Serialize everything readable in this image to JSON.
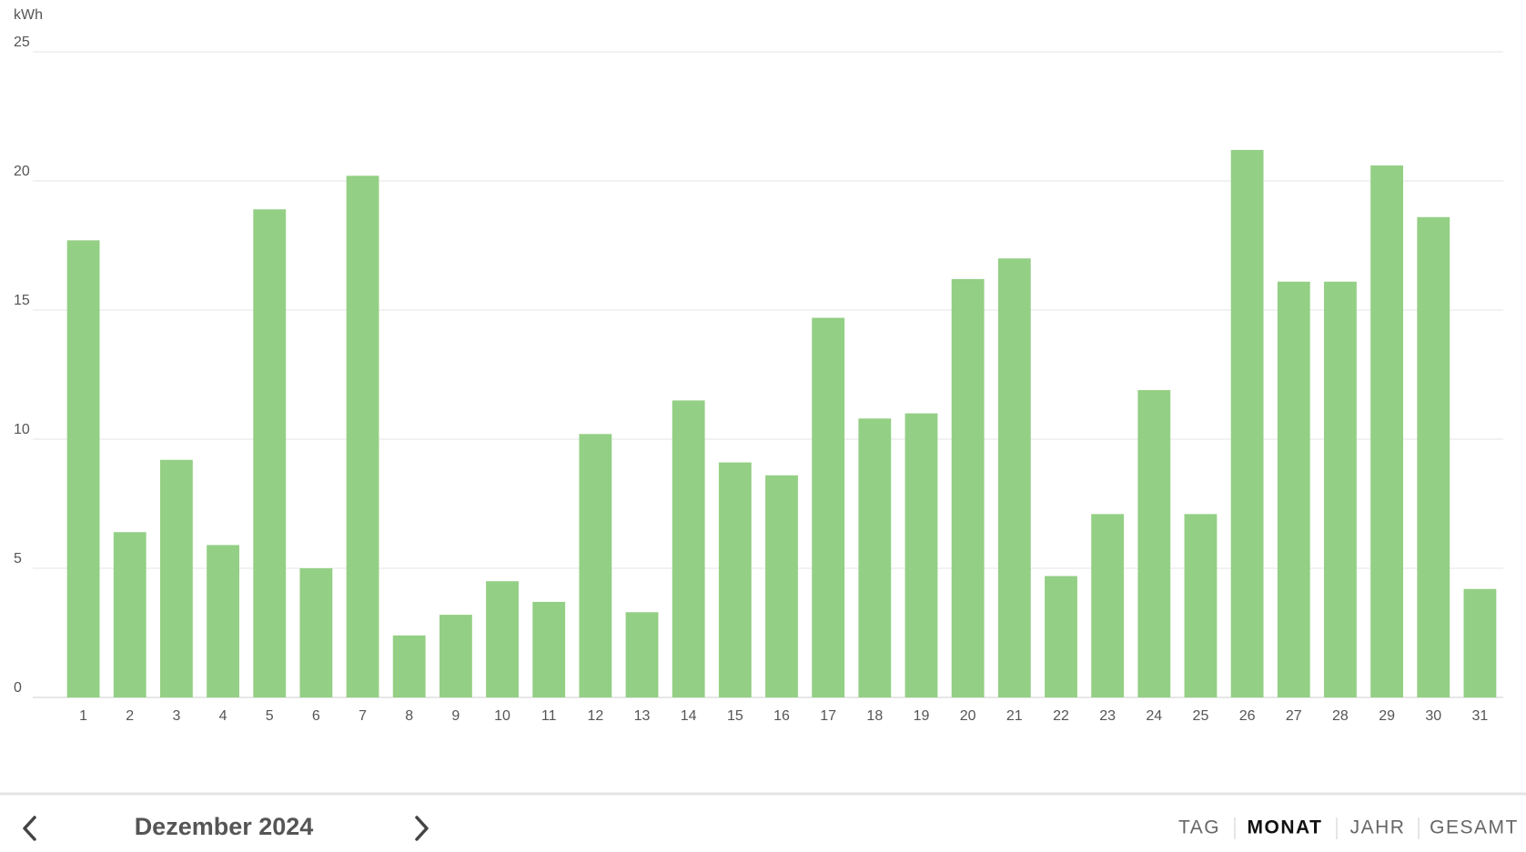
{
  "chart_data": {
    "type": "bar",
    "y_label": "kWh",
    "categories": [
      "1",
      "2",
      "3",
      "4",
      "5",
      "6",
      "7",
      "8",
      "9",
      "10",
      "11",
      "12",
      "13",
      "14",
      "15",
      "16",
      "17",
      "18",
      "19",
      "20",
      "21",
      "22",
      "23",
      "24",
      "25",
      "26",
      "27",
      "28",
      "29",
      "30",
      "31"
    ],
    "values": [
      17.7,
      6.4,
      9.2,
      5.9,
      18.9,
      5.0,
      20.2,
      2.4,
      3.2,
      4.5,
      3.7,
      10.2,
      3.3,
      11.5,
      9.1,
      8.6,
      14.7,
      10.8,
      11.0,
      16.2,
      17.0,
      4.7,
      7.1,
      11.9,
      7.1,
      21.2,
      16.1,
      16.1,
      20.6,
      18.6,
      4.2
    ],
    "color": "#93cf84",
    "ylim": [
      0,
      25
    ],
    "yticks": [
      0,
      5,
      10,
      15,
      20,
      25
    ],
    "grid": true
  },
  "footer": {
    "period": "Dezember 2024",
    "tabs": [
      "TAG",
      "MONAT",
      "JAHR",
      "GESAMT"
    ],
    "active_tab": 1
  }
}
